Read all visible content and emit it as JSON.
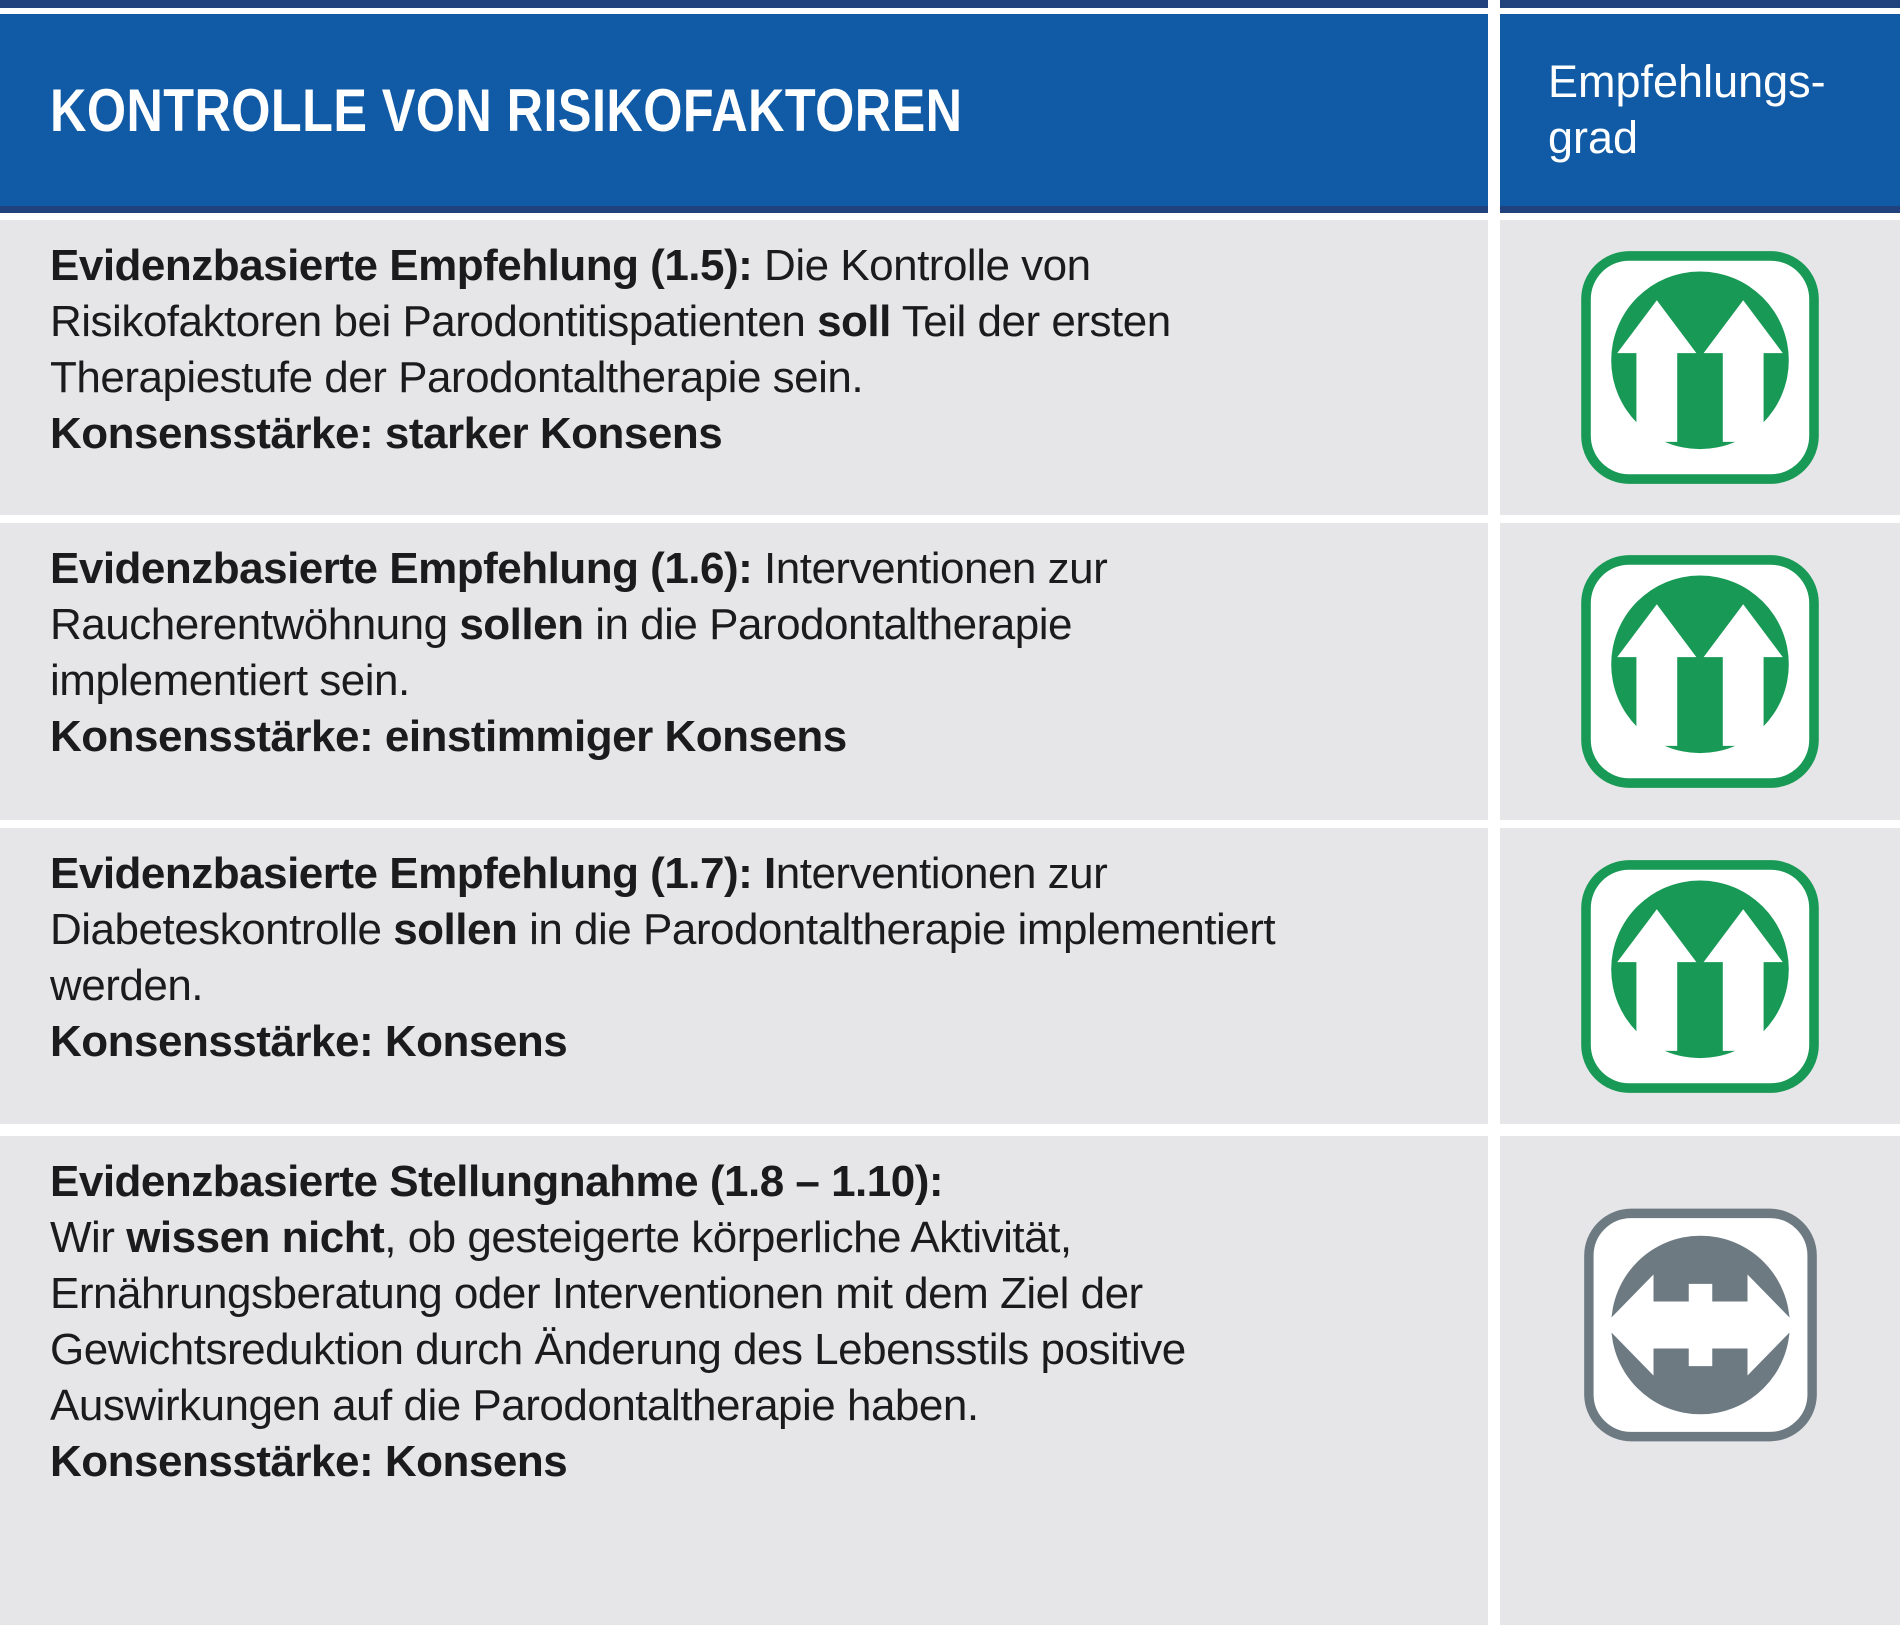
{
  "header": {
    "title": "KONTROLLE VON RISIKOFAKTOREN",
    "grade_label_line1": "Empfehlungs-",
    "grade_label_line2": "grad"
  },
  "colors": {
    "header_blue": "#115ba6",
    "border_navy": "#21427c",
    "row_gray": "#e6e6e8",
    "grade_green": "#189955",
    "grade_gray": "#6d7a82",
    "text": "#1b1b1d"
  },
  "rows": [
    {
      "id": "1.5",
      "grade_icon": "double-up-arrows",
      "grade_color": "#189955",
      "lines": [
        [
          {
            "bold": true,
            "text": "Evidenzbasierte Empfehlung (1.5):"
          },
          {
            "text": " Die Kontrolle von"
          }
        ],
        [
          {
            "text": "Risikofaktoren bei Parodontitispatienten "
          },
          {
            "bold": true,
            "text": "soll"
          },
          {
            "text": " Teil der ersten"
          }
        ],
        [
          {
            "text": "Therapiestufe der Parodontaltherapie sein."
          }
        ],
        [
          {
            "bold": true,
            "text": "Konsensstärke: starker Konsens"
          }
        ]
      ]
    },
    {
      "id": "1.6",
      "grade_icon": "double-up-arrows",
      "grade_color": "#189955",
      "lines": [
        [
          {
            "bold": true,
            "text": "Evidenzbasierte Empfehlung (1.6):"
          },
          {
            "text": " Interventionen zur"
          }
        ],
        [
          {
            "text": "Raucherentwöhnung "
          },
          {
            "bold": true,
            "text": "sollen"
          },
          {
            "text": " in die Parodontaltherapie"
          }
        ],
        [
          {
            "text": "implementiert sein."
          }
        ],
        [
          {
            "bold": true,
            "text": "Konsensstärke: einstimmiger Konsens"
          }
        ]
      ]
    },
    {
      "id": "1.7",
      "grade_icon": "double-up-arrows",
      "grade_color": "#189955",
      "lines": [
        [
          {
            "bold": true,
            "text": "Evidenzbasierte Empfehlung (1.7): I"
          },
          {
            "text": "nterventionen zur"
          }
        ],
        [
          {
            "text": "Diabeteskontrolle "
          },
          {
            "bold": true,
            "text": "sollen"
          },
          {
            "text": " in die Parodontaltherapie implementiert"
          }
        ],
        [
          {
            "text": "werden."
          }
        ],
        [
          {
            "bold": true,
            "text": "Konsensstärke: Konsens"
          }
        ]
      ]
    },
    {
      "id": "1.8 – 1.10",
      "grade_icon": "left-right-arrow",
      "grade_color": "#6d7a82",
      "lines": [
        [
          {
            "bold": true,
            "text": "Evidenzbasierte Stellungnahme (1.8 – 1.10):"
          }
        ],
        [
          {
            "text": "Wir "
          },
          {
            "bold": true,
            "text": "wissen nicht"
          },
          {
            "text": ", ob gesteigerte körperliche Aktivität,"
          }
        ],
        [
          {
            "text": "Ernährungsberatung oder Interventionen mit dem Ziel der"
          }
        ],
        [
          {
            "text": "Gewichtsreduktion durch Änderung des Lebensstils positive"
          }
        ],
        [
          {
            "text": "Auswirkungen auf die Parodontaltherapie haben."
          }
        ],
        [
          {
            "bold": true,
            "text": "Konsensstärke: Konsens"
          }
        ]
      ]
    }
  ]
}
